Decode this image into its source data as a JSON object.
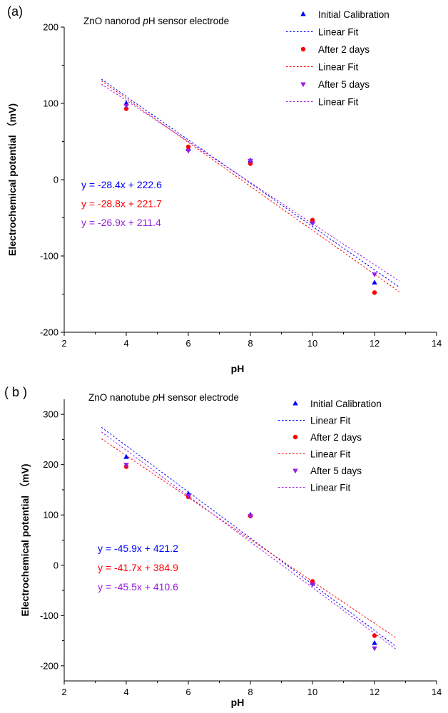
{
  "chart_data": [
    {
      "type": "scatter",
      "panel_label": "(a)",
      "title_parts": [
        "ZnO nanorod ",
        "p",
        "H sensor electrode"
      ],
      "xlabel": "pH",
      "ylabel": "Electrochemical potential （mV)",
      "xlim": [
        2,
        14
      ],
      "ylim": [
        -200,
        200
      ],
      "xticks": [
        2,
        4,
        6,
        8,
        10,
        12,
        14
      ],
      "yticks": [
        -200,
        -100,
        0,
        100,
        200
      ],
      "fit_range": [
        3.2,
        12.8
      ],
      "legend_position": "top-right",
      "series": [
        {
          "name": "Initial Calibration",
          "fit_name": "Linear Fit",
          "marker": "triangle-up",
          "color": "#0000ff",
          "x": [
            4,
            6,
            8,
            10,
            12
          ],
          "y": [
            100,
            40,
            25,
            -55,
            -135
          ],
          "fit_label": "y = -28.4x + 222.6",
          "slope": -28.4,
          "intercept": 222.6
        },
        {
          "name": "After 2 days",
          "fit_name": "Linear Fit",
          "marker": "circle",
          "color": "#ff0000",
          "x": [
            4,
            6,
            8,
            10,
            12
          ],
          "y": [
            93,
            43,
            21,
            -53,
            -148
          ],
          "fit_label": "y = -28.8x + 221.7",
          "slope": -28.8,
          "intercept": 221.7
        },
        {
          "name": "After 5 days",
          "fit_name": "Linear Fit",
          "marker": "triangle-down",
          "color": "#9b1de0",
          "x": [
            4,
            6,
            8,
            10,
            12
          ],
          "y": [
            97,
            38,
            25,
            -57,
            -124
          ],
          "fit_label": "y = -26.9x + 211.4",
          "slope": -26.9,
          "intercept": 211.4
        }
      ]
    },
    {
      "type": "scatter",
      "panel_label": "( b )",
      "title_parts": [
        "ZnO nanotube ",
        "p",
        "H sensor electrode"
      ],
      "xlabel": "pH",
      "ylabel": "Electrochemical potential （mV)",
      "xlim": [
        2,
        14
      ],
      "ylim": [
        -230,
        330
      ],
      "xticks": [
        2,
        4,
        6,
        8,
        10,
        12,
        14
      ],
      "yticks": [
        -200,
        -100,
        0,
        100,
        200,
        300
      ],
      "fit_range": [
        3.2,
        12.7
      ],
      "legend_position": "top-right",
      "series": [
        {
          "name": "Initial Calibration",
          "fit_name": "Linear Fit",
          "marker": "triangle-up",
          "color": "#0000ff",
          "x": [
            4,
            6,
            8,
            10,
            12
          ],
          "y": [
            215,
            142,
            100,
            -35,
            -155
          ],
          "fit_label": "y = -45.9x + 421.2",
          "slope": -45.9,
          "intercept": 421.2
        },
        {
          "name": "After 2 days",
          "fit_name": "Linear Fit",
          "marker": "circle",
          "color": "#ff0000",
          "x": [
            4,
            6,
            8,
            10,
            12
          ],
          "y": [
            196,
            136,
            98,
            -32,
            -140
          ],
          "fit_label": "y = -41.7x + 384.9",
          "slope": -41.7,
          "intercept": 384.9
        },
        {
          "name": "After 5 days",
          "fit_name": "Linear Fit",
          "marker": "triangle-down",
          "color": "#9b1de0",
          "x": [
            4,
            6,
            8,
            10,
            12
          ],
          "y": [
            200,
            138,
            98,
            -38,
            -165
          ],
          "fit_label": "y = -45.5x + 410.6",
          "slope": -45.5,
          "intercept": 410.6
        }
      ]
    }
  ]
}
